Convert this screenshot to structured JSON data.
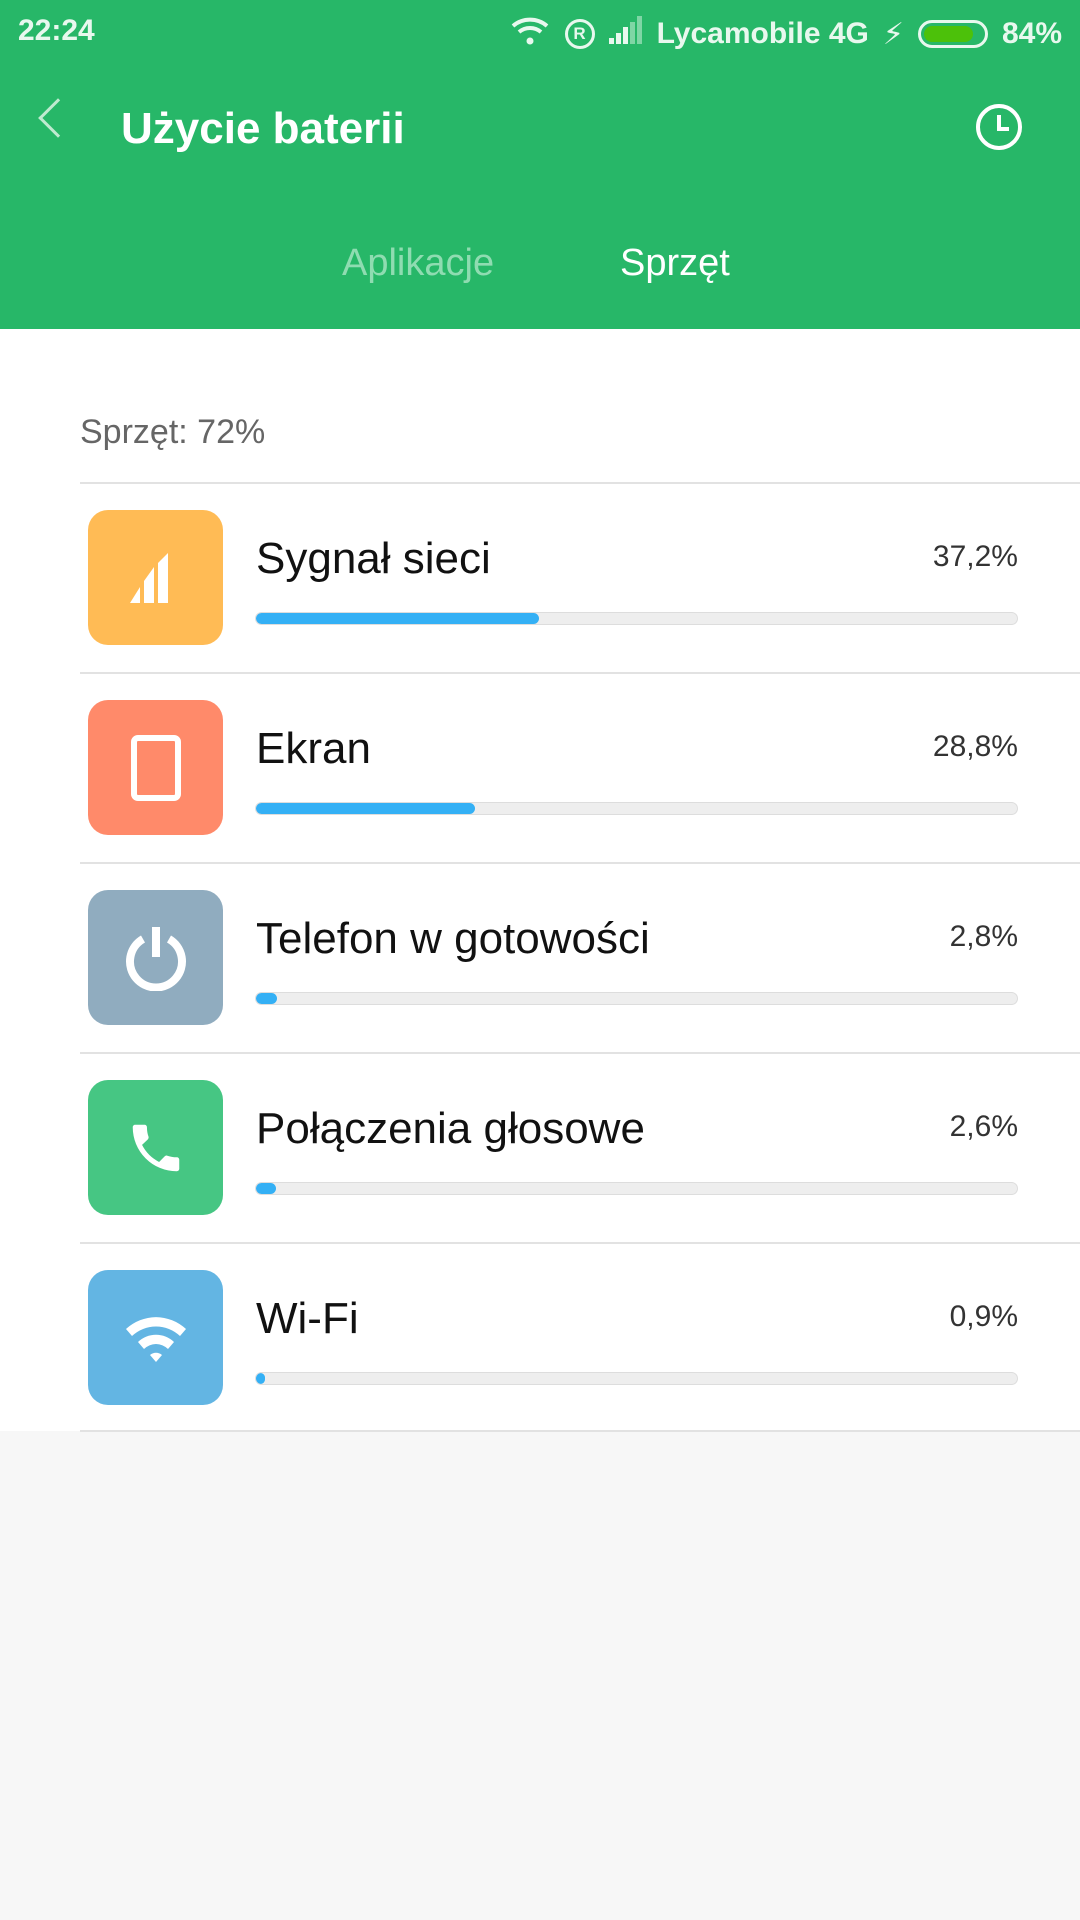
{
  "status_bar": {
    "time": "22:24",
    "carrier": "Lycamobile 4G",
    "battery": "84%",
    "battery_level": 84
  },
  "header": {
    "title": "Użycie baterii",
    "tabs": [
      {
        "label": "Aplikacje",
        "active": false
      },
      {
        "label": "Sprzęt",
        "active": true
      }
    ]
  },
  "section_label": "Sprzęt: 72%",
  "colors": {
    "header": "#27b768",
    "bar": "#34b0f5"
  },
  "items": [
    {
      "name": "Sygnał sieci",
      "percent_label": "37,2%",
      "percent": 37.2,
      "icon": "signal-icon",
      "color": "#ffbb55"
    },
    {
      "name": "Ekran",
      "percent_label": "28,8%",
      "percent": 28.8,
      "icon": "screen-icon",
      "color": "#ff8a6a"
    },
    {
      "name": "Telefon w gotowości",
      "percent_label": "2,8%",
      "percent": 2.8,
      "icon": "power-icon",
      "color": "#90acbf"
    },
    {
      "name": "Połączenia głosowe",
      "percent_label": "2,6%",
      "percent": 2.6,
      "icon": "phone-icon",
      "color": "#46c683"
    },
    {
      "name": "Wi-Fi",
      "percent_label": "0,9%",
      "percent": 0.9,
      "icon": "wifi-icon",
      "color": "#63b5e3"
    }
  ]
}
